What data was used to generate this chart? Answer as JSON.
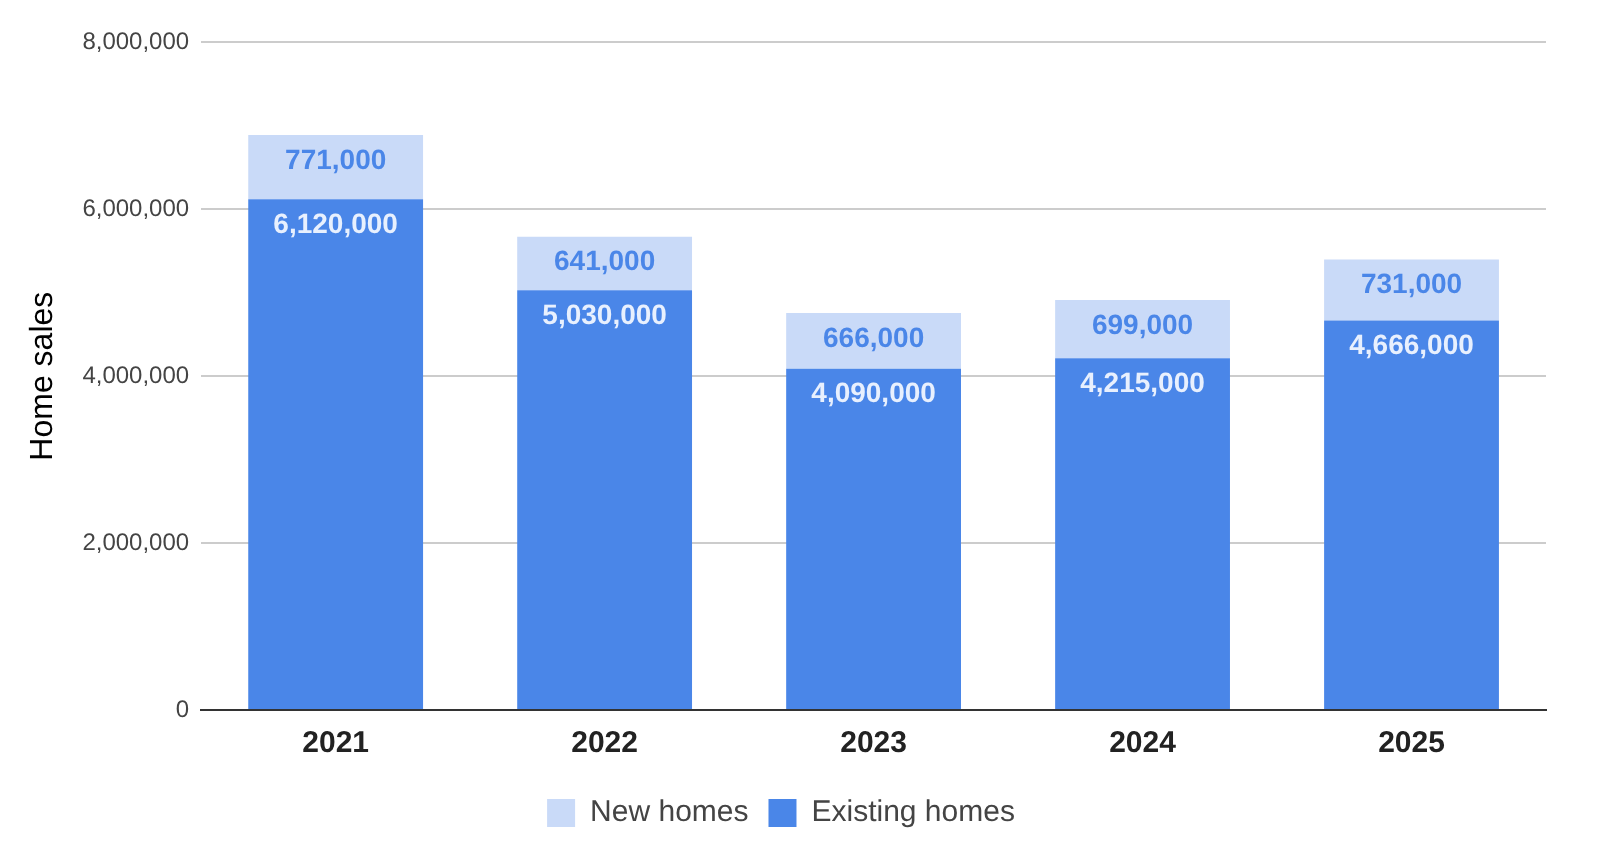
{
  "chart_data": {
    "type": "bar",
    "stacked": true,
    "ylabel": "Home sales",
    "categories": [
      "2021",
      "2022",
      "2023",
      "2024",
      "2025"
    ],
    "series": [
      {
        "name": "Existing homes",
        "color": "#4a86e8",
        "values": [
          6120000,
          5030000,
          4090000,
          4215000,
          4666000
        ],
        "value_labels": [
          "6,120,000",
          "5,030,000",
          "4,090,000",
          "4,215,000",
          "4,666,000"
        ]
      },
      {
        "name": "New homes",
        "color": "#c9daf8",
        "values": [
          771000,
          641000,
          666000,
          699000,
          731000
        ],
        "value_labels": [
          "771,000",
          "641,000",
          "666,000",
          "699,000",
          "731,000"
        ]
      }
    ],
    "ylim": [
      0,
      8000000
    ],
    "yticks": [
      0,
      {
        "value": 2000000,
        "label": "2,000,000"
      },
      {
        "value": 4000000,
        "label": "4,000,000"
      },
      {
        "value": 6000000,
        "label": "6,000,000"
      },
      {
        "value": 8000000,
        "label": "8,000,000"
      }
    ],
    "grid": "y",
    "legend": "bottom"
  }
}
